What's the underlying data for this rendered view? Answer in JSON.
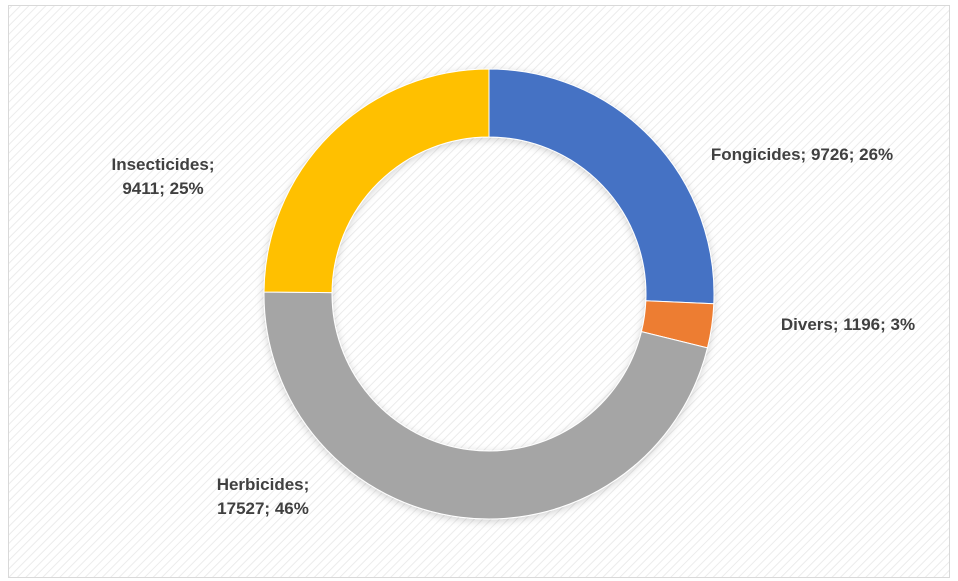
{
  "chart_data": {
    "type": "donut",
    "values": [
      9726,
      1196,
      17527,
      9411
    ],
    "value_labels": [
      "Fongicides; 9726; 26%",
      "Divers; 1196; 3%",
      "Herbicides; 17527; 46%",
      "Insecticides; 9411; 25%"
    ],
    "colors": [
      "#4472c4",
      "#ed7d31",
      "#a5a5a5",
      "#ffc000"
    ]
  }
}
